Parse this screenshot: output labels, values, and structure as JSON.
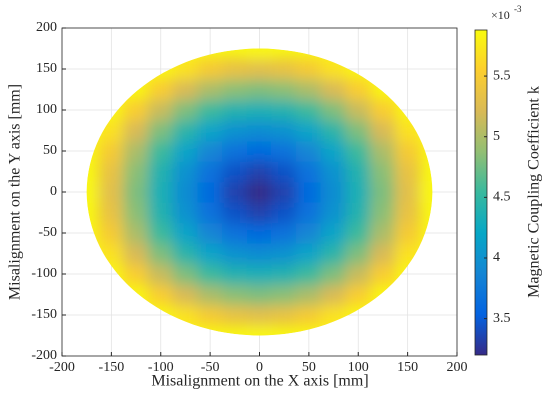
{
  "chart_data": {
    "type": "heatmap",
    "xlabel": "Misalignment on the X axis [mm]",
    "ylabel": "Misalignment on the Y axis [mm]",
    "x": [
      -175,
      -150,
      -125,
      -100,
      -75,
      -50,
      -25,
      0,
      25,
      50,
      75,
      100,
      125,
      150,
      175
    ],
    "y": [
      -175,
      -150,
      -125,
      -100,
      -75,
      -50,
      -25,
      0,
      25,
      50,
      75,
      100,
      125,
      150,
      175
    ],
    "z": [
      [
        null,
        null,
        null,
        null,
        null,
        null,
        null,
        5.85,
        null,
        null,
        null,
        null,
        null,
        null,
        null
      ],
      [
        null,
        null,
        null,
        null,
        5.69,
        5.48,
        5.35,
        5.3,
        5.35,
        5.48,
        5.69,
        null,
        null,
        null,
        null
      ],
      [
        null,
        null,
        null,
        5.52,
        5.21,
        4.99,
        4.85,
        4.8,
        4.85,
        4.99,
        5.21,
        5.52,
        null,
        null,
        null
      ],
      [
        null,
        null,
        5.52,
        5.13,
        4.8,
        4.55,
        4.4,
        4.35,
        4.4,
        4.55,
        4.8,
        5.13,
        5.52,
        null,
        null
      ],
      [
        null,
        5.69,
        5.21,
        4.8,
        4.45,
        4.18,
        4.0,
        3.94,
        4.0,
        4.18,
        4.45,
        4.8,
        5.21,
        5.69,
        null
      ],
      [
        null,
        5.48,
        4.99,
        4.55,
        4.18,
        3.88,
        3.68,
        3.6,
        3.68,
        3.88,
        4.18,
        4.55,
        4.99,
        5.48,
        null
      ],
      [
        null,
        5.35,
        4.85,
        4.4,
        4.0,
        3.68,
        3.44,
        3.34,
        3.44,
        3.68,
        4.0,
        4.4,
        4.85,
        5.35,
        null
      ],
      [
        5.85,
        5.3,
        4.8,
        4.35,
        3.94,
        3.6,
        3.34,
        3.2,
        3.34,
        3.6,
        3.94,
        4.35,
        4.8,
        5.3,
        5.85
      ],
      [
        null,
        5.35,
        4.85,
        4.4,
        4.0,
        3.68,
        3.44,
        3.34,
        3.44,
        3.68,
        4.0,
        4.4,
        4.85,
        5.35,
        null
      ],
      [
        null,
        5.48,
        4.99,
        4.55,
        4.18,
        3.88,
        3.68,
        3.6,
        3.68,
        3.88,
        4.18,
        4.55,
        4.99,
        5.48,
        null
      ],
      [
        null,
        5.69,
        5.21,
        4.8,
        4.45,
        4.18,
        4.0,
        3.94,
        4.0,
        4.18,
        4.45,
        4.8,
        5.21,
        5.69,
        null
      ],
      [
        null,
        null,
        5.52,
        5.13,
        4.8,
        4.55,
        4.4,
        4.35,
        4.4,
        4.55,
        4.8,
        5.13,
        5.52,
        null,
        null
      ],
      [
        null,
        null,
        null,
        5.52,
        5.21,
        4.99,
        4.85,
        4.8,
        4.85,
        4.99,
        5.21,
        5.52,
        null,
        null,
        null
      ],
      [
        null,
        null,
        null,
        null,
        5.69,
        5.48,
        5.35,
        5.3,
        5.35,
        5.48,
        5.69,
        null,
        null,
        null,
        null
      ],
      [
        null,
        null,
        null,
        null,
        null,
        null,
        null,
        5.85,
        null,
        null,
        null,
        null,
        null,
        null,
        null
      ]
    ],
    "xlim": [
      -200,
      200
    ],
    "ylim": [
      -200,
      200
    ],
    "xticks": [
      -200,
      -150,
      -100,
      -50,
      0,
      50,
      100,
      150,
      200
    ],
    "yticks": [
      -200,
      -150,
      -100,
      -50,
      0,
      50,
      100,
      150,
      200
    ],
    "grid": true,
    "colormap": "parula",
    "colorbar": {
      "label": "Magnetic Coupling Coefficient k",
      "lim": [
        3.2,
        5.88
      ],
      "ticks": [
        3.5,
        4,
        4.5,
        5,
        5.5
      ],
      "multiplier": "×10",
      "exponent": "-3"
    }
  }
}
